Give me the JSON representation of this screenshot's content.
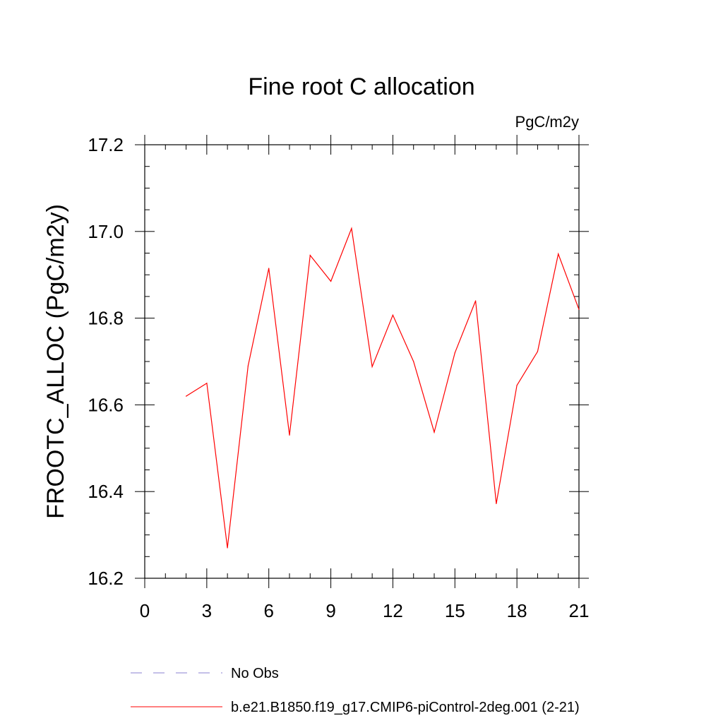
{
  "chart_data": {
    "type": "line",
    "title": "Fine root C allocation",
    "units_label": "PgC/m2y",
    "ylabel": "FROOTC_ALLOC  (PgC/m2y)",
    "xlabel": "",
    "xlim": [
      0,
      21
    ],
    "ylim": [
      16.2,
      17.2
    ],
    "x_ticks": [
      0,
      3,
      6,
      9,
      12,
      15,
      18,
      21
    ],
    "y_ticks": [
      16.2,
      16.4,
      16.6,
      16.8,
      17.0,
      17.2
    ],
    "y_tick_labels": [
      "16.2",
      "16.4",
      "16.6",
      "16.8",
      "17.0",
      "17.2"
    ],
    "series": [
      {
        "name": "b.e21.B1850.f19_g17.CMIP6-piControl-2deg.001 (2-21)",
        "color": "#ff0000",
        "style": "solid",
        "x": [
          2,
          3,
          4,
          5,
          6,
          7,
          8,
          9,
          10,
          11,
          12,
          13,
          14,
          15,
          16,
          17,
          18,
          19,
          20,
          21
        ],
        "values": [
          16.62,
          16.65,
          16.27,
          16.69,
          16.915,
          16.53,
          16.945,
          16.885,
          17.007,
          16.688,
          16.807,
          16.7,
          16.537,
          16.72,
          16.84,
          16.372,
          16.645,
          16.723,
          16.948,
          16.82
        ]
      }
    ],
    "legend": [
      {
        "label": "No Obs",
        "color": "#8a80d0",
        "style": "dashed"
      },
      {
        "label": "b.e21.B1850.f19_g17.CMIP6-piControl-2deg.001 (2-21)",
        "color": "#ff0000",
        "style": "solid"
      }
    ]
  }
}
